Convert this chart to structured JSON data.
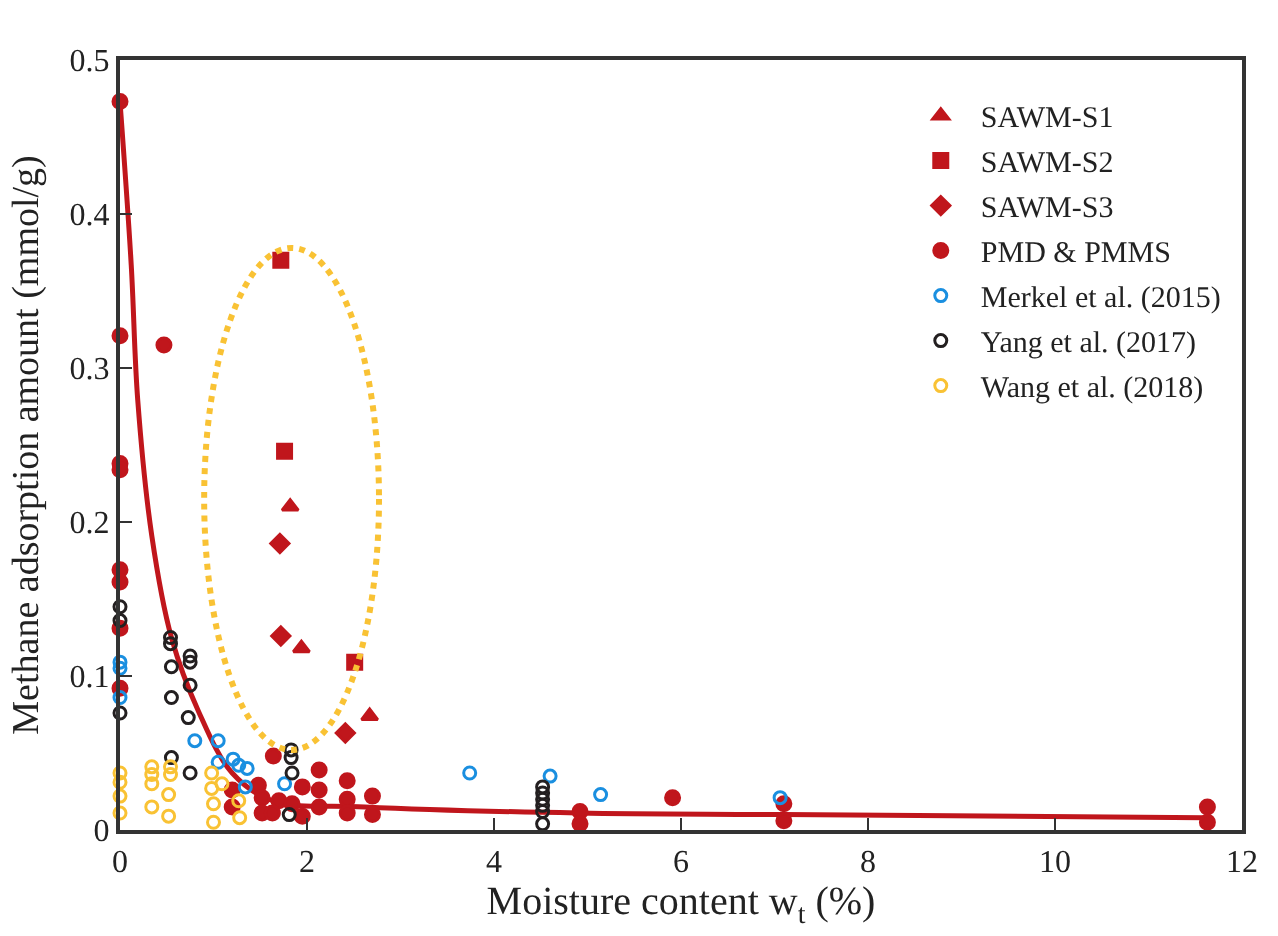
{
  "chart_data": {
    "type": "scatter",
    "xlabel": "Moisture content w$_{t}$ (%)",
    "ylabel": "Methane adsorption amount (mmol/g)",
    "xlim": [
      0,
      12
    ],
    "ylim": [
      0,
      0.5
    ],
    "xticks": [
      0,
      2,
      4,
      6,
      8,
      10,
      12
    ],
    "yticks": [
      0,
      0.1,
      0.2,
      0.3,
      0.4,
      0.5
    ],
    "legend": "top right",
    "series": [
      {
        "type": "line",
        "color": "#c0161c",
        "marker": "none",
        "line_style": "solid",
        "x": [
          0,
          0.12,
          0.19,
          0.34,
          0.55,
          0.84,
          1.2,
          1.63,
          2.62,
          4.9,
          7.1,
          11.6
        ],
        "values": [
          0.473,
          0.367,
          0.279,
          0.191,
          0.125,
          0.077,
          0.037,
          0.019,
          0.015,
          0.011,
          0.01,
          0.008
        ]
      },
      {
        "name": "SAWM-S1",
        "color": "#c0161c",
        "marker": "triangle",
        "x": [
          1.82,
          1.94,
          2.67
        ],
        "values": [
          0.21,
          0.118,
          0.074
        ]
      },
      {
        "name": "SAWM-S2",
        "color": "#c0161c",
        "marker": "square",
        "x": [
          1.72,
          1.76,
          2.51
        ],
        "values": [
          0.37,
          0.246,
          0.109
        ]
      },
      {
        "name": "SAWM-S3",
        "color": "#c0161c",
        "marker": "diamond",
        "x": [
          1.71,
          1.72,
          2.41
        ],
        "values": [
          0.186,
          0.126,
          0.063
        ]
      },
      {
        "name": "PMD & PMMS",
        "color": "#c0161c",
        "marker": "circle",
        "x": [
          0,
          0,
          0,
          0,
          0,
          0,
          0,
          0,
          0.47,
          1.64,
          2.13,
          2.43,
          1.48,
          1.95,
          2.13,
          2.43,
          2.7,
          1.52,
          1.7,
          1.84,
          1.52,
          1.63,
          1.95,
          2.13,
          2.43,
          2.7,
          1.2,
          1.2,
          4.92,
          4.92,
          5.91,
          7.1,
          7.1,
          11.63,
          11.63
        ],
        "values": [
          0.473,
          0.321,
          0.238,
          0.234,
          0.169,
          0.161,
          0.131,
          0.092,
          0.315,
          0.048,
          0.039,
          0.032,
          0.029,
          0.028,
          0.026,
          0.02,
          0.022,
          0.021,
          0.019,
          0.017,
          0.011,
          0.011,
          0.009,
          0.015,
          0.011,
          0.01,
          0.026,
          0.015,
          0.012,
          0.004,
          0.021,
          0.017,
          0.006,
          0.015,
          0.005
        ]
      },
      {
        "name": "Merkel et al. (2015)",
        "color": "#1a8fe0",
        "marker": "circle-open",
        "x": [
          0,
          0,
          0,
          0.8,
          1.05,
          1.05,
          1.21,
          1.27,
          1.36,
          1.34,
          1.76,
          3.74,
          4.6,
          5.14,
          7.06
        ],
        "values": [
          0.109,
          0.105,
          0.086,
          0.058,
          0.058,
          0.044,
          0.046,
          0.042,
          0.04,
          0.028,
          0.03,
          0.037,
          0.035,
          0.023,
          0.021
        ]
      },
      {
        "name": "Yang et al. (2017)",
        "color": "#231f20",
        "marker": "circle-open",
        "x": [
          0,
          0,
          0,
          0.54,
          0.54,
          0.75,
          0.75,
          0.55,
          0.75,
          0.55,
          0.73,
          0.55,
          0.75,
          1.83,
          1.83,
          1.84,
          1.81,
          4.52,
          4.52,
          4.52,
          4.52,
          4.52,
          4.52
        ],
        "values": [
          0.145,
          0.136,
          0.076,
          0.125,
          0.121,
          0.113,
          0.109,
          0.106,
          0.094,
          0.086,
          0.073,
          0.047,
          0.037,
          0.052,
          0.047,
          0.037,
          0.01,
          0.028,
          0.024,
          0.02,
          0.016,
          0.012,
          0.004
        ]
      },
      {
        "name": "Wang et al. (2018)",
        "color": "#f9c234",
        "marker": "circle-open",
        "x": [
          0,
          0,
          0,
          0,
          0.34,
          0.34,
          0.34,
          0.34,
          0.54,
          0.54,
          0.52,
          0.52,
          0.98,
          0.98,
          1.0,
          1.0,
          1.09,
          1.27,
          1.28
        ],
        "values": [
          0.037,
          0.031,
          0.022,
          0.011,
          0.041,
          0.036,
          0.03,
          0.015,
          0.041,
          0.036,
          0.023,
          0.009,
          0.037,
          0.027,
          0.017,
          0.005,
          0.03,
          0.019,
          0.008
        ]
      }
    ]
  }
}
